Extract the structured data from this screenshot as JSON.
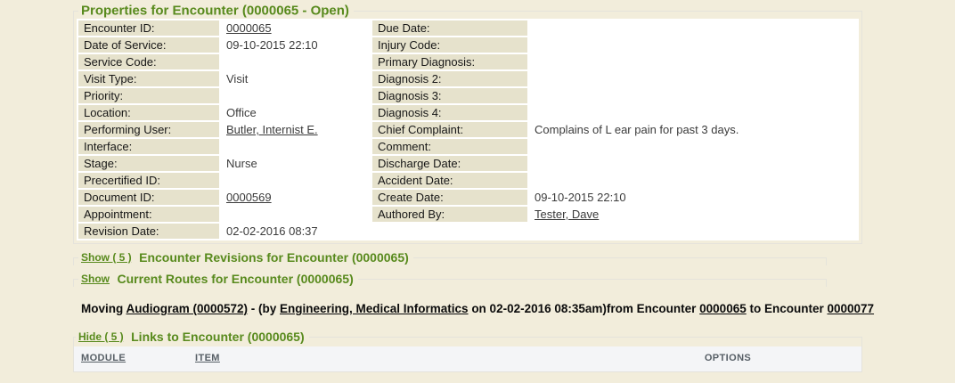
{
  "page": {
    "background_color": "#F2EDDB",
    "accent_green": "#588A1D",
    "label_cell_color": "#E6E2CC"
  },
  "properties": {
    "title": "Properties for Encounter (0000065 - Open)",
    "rows": [
      {
        "label1": "Encounter ID:",
        "value1": "0000065",
        "link1": true,
        "label2": "Due Date:",
        "value2": "",
        "link2": false
      },
      {
        "label1": "Date of Service:",
        "value1": "09-10-2015 22:10",
        "link1": false,
        "label2": "Injury Code:",
        "value2": "",
        "link2": false
      },
      {
        "label1": "Service Code:",
        "value1": "",
        "link1": false,
        "label2": "Primary Diagnosis:",
        "value2": "",
        "link2": false
      },
      {
        "label1": "Visit Type:",
        "value1": "Visit",
        "link1": false,
        "label2": "Diagnosis 2:",
        "value2": "",
        "link2": false
      },
      {
        "label1": "Priority:",
        "value1": "",
        "link1": false,
        "label2": "Diagnosis 3:",
        "value2": "",
        "link2": false
      },
      {
        "label1": "Location:",
        "value1": "Office",
        "link1": false,
        "label2": "Diagnosis 4:",
        "value2": "",
        "link2": false
      },
      {
        "label1": "Performing User:",
        "value1": "Butler, Internist E.",
        "link1": true,
        "label2": "Chief Complaint:",
        "value2": "Complains of L ear pain for past 3 days.",
        "link2": false
      },
      {
        "label1": "Interface:",
        "value1": "",
        "link1": false,
        "label2": "Comment:",
        "value2": "",
        "link2": false
      },
      {
        "label1": "Stage:",
        "value1": "Nurse",
        "link1": false,
        "label2": "Discharge Date:",
        "value2": "",
        "link2": false
      },
      {
        "label1": "Precertified ID:",
        "value1": "",
        "link1": false,
        "label2": "Accident Date:",
        "value2": "",
        "link2": false
      },
      {
        "label1": "Document ID:",
        "value1": "0000569",
        "link1": true,
        "label2": "Create Date:",
        "value2": "09-10-2015 22:10",
        "link2": false
      },
      {
        "label1": "Appointment:",
        "value1": "",
        "link1": false,
        "label2": "Authored By:",
        "value2": "Tester, Dave",
        "link2": true
      },
      {
        "label1": "Revision Date:",
        "value1": "02-02-2016 08:37",
        "link1": false,
        "span": true
      }
    ]
  },
  "revisions": {
    "toggle_label": "Show ( 5 )",
    "title": "Encounter Revisions for Encounter (0000065)"
  },
  "routes": {
    "toggle_label": "Show",
    "title": "Current Routes for Encounter (0000065)"
  },
  "moving": {
    "prefix": "Moving ",
    "item_link": "Audiogram (0000572)",
    "mid1": " - (by ",
    "user_link": "Engineering, Medical Informatics",
    "mid2": " on 02-02-2016 08:35am)from Encounter ",
    "from_link": "0000065",
    "mid3": " to Encounter ",
    "to_link": "0000077"
  },
  "links": {
    "toggle_label": "Hide ( 5 )",
    "title": "Links to Encounter (0000065)",
    "columns": [
      {
        "label": "MODULE",
        "link": true
      },
      {
        "label": "ITEM",
        "link": true
      },
      {
        "label": "OPTIONS",
        "link": false
      }
    ]
  }
}
